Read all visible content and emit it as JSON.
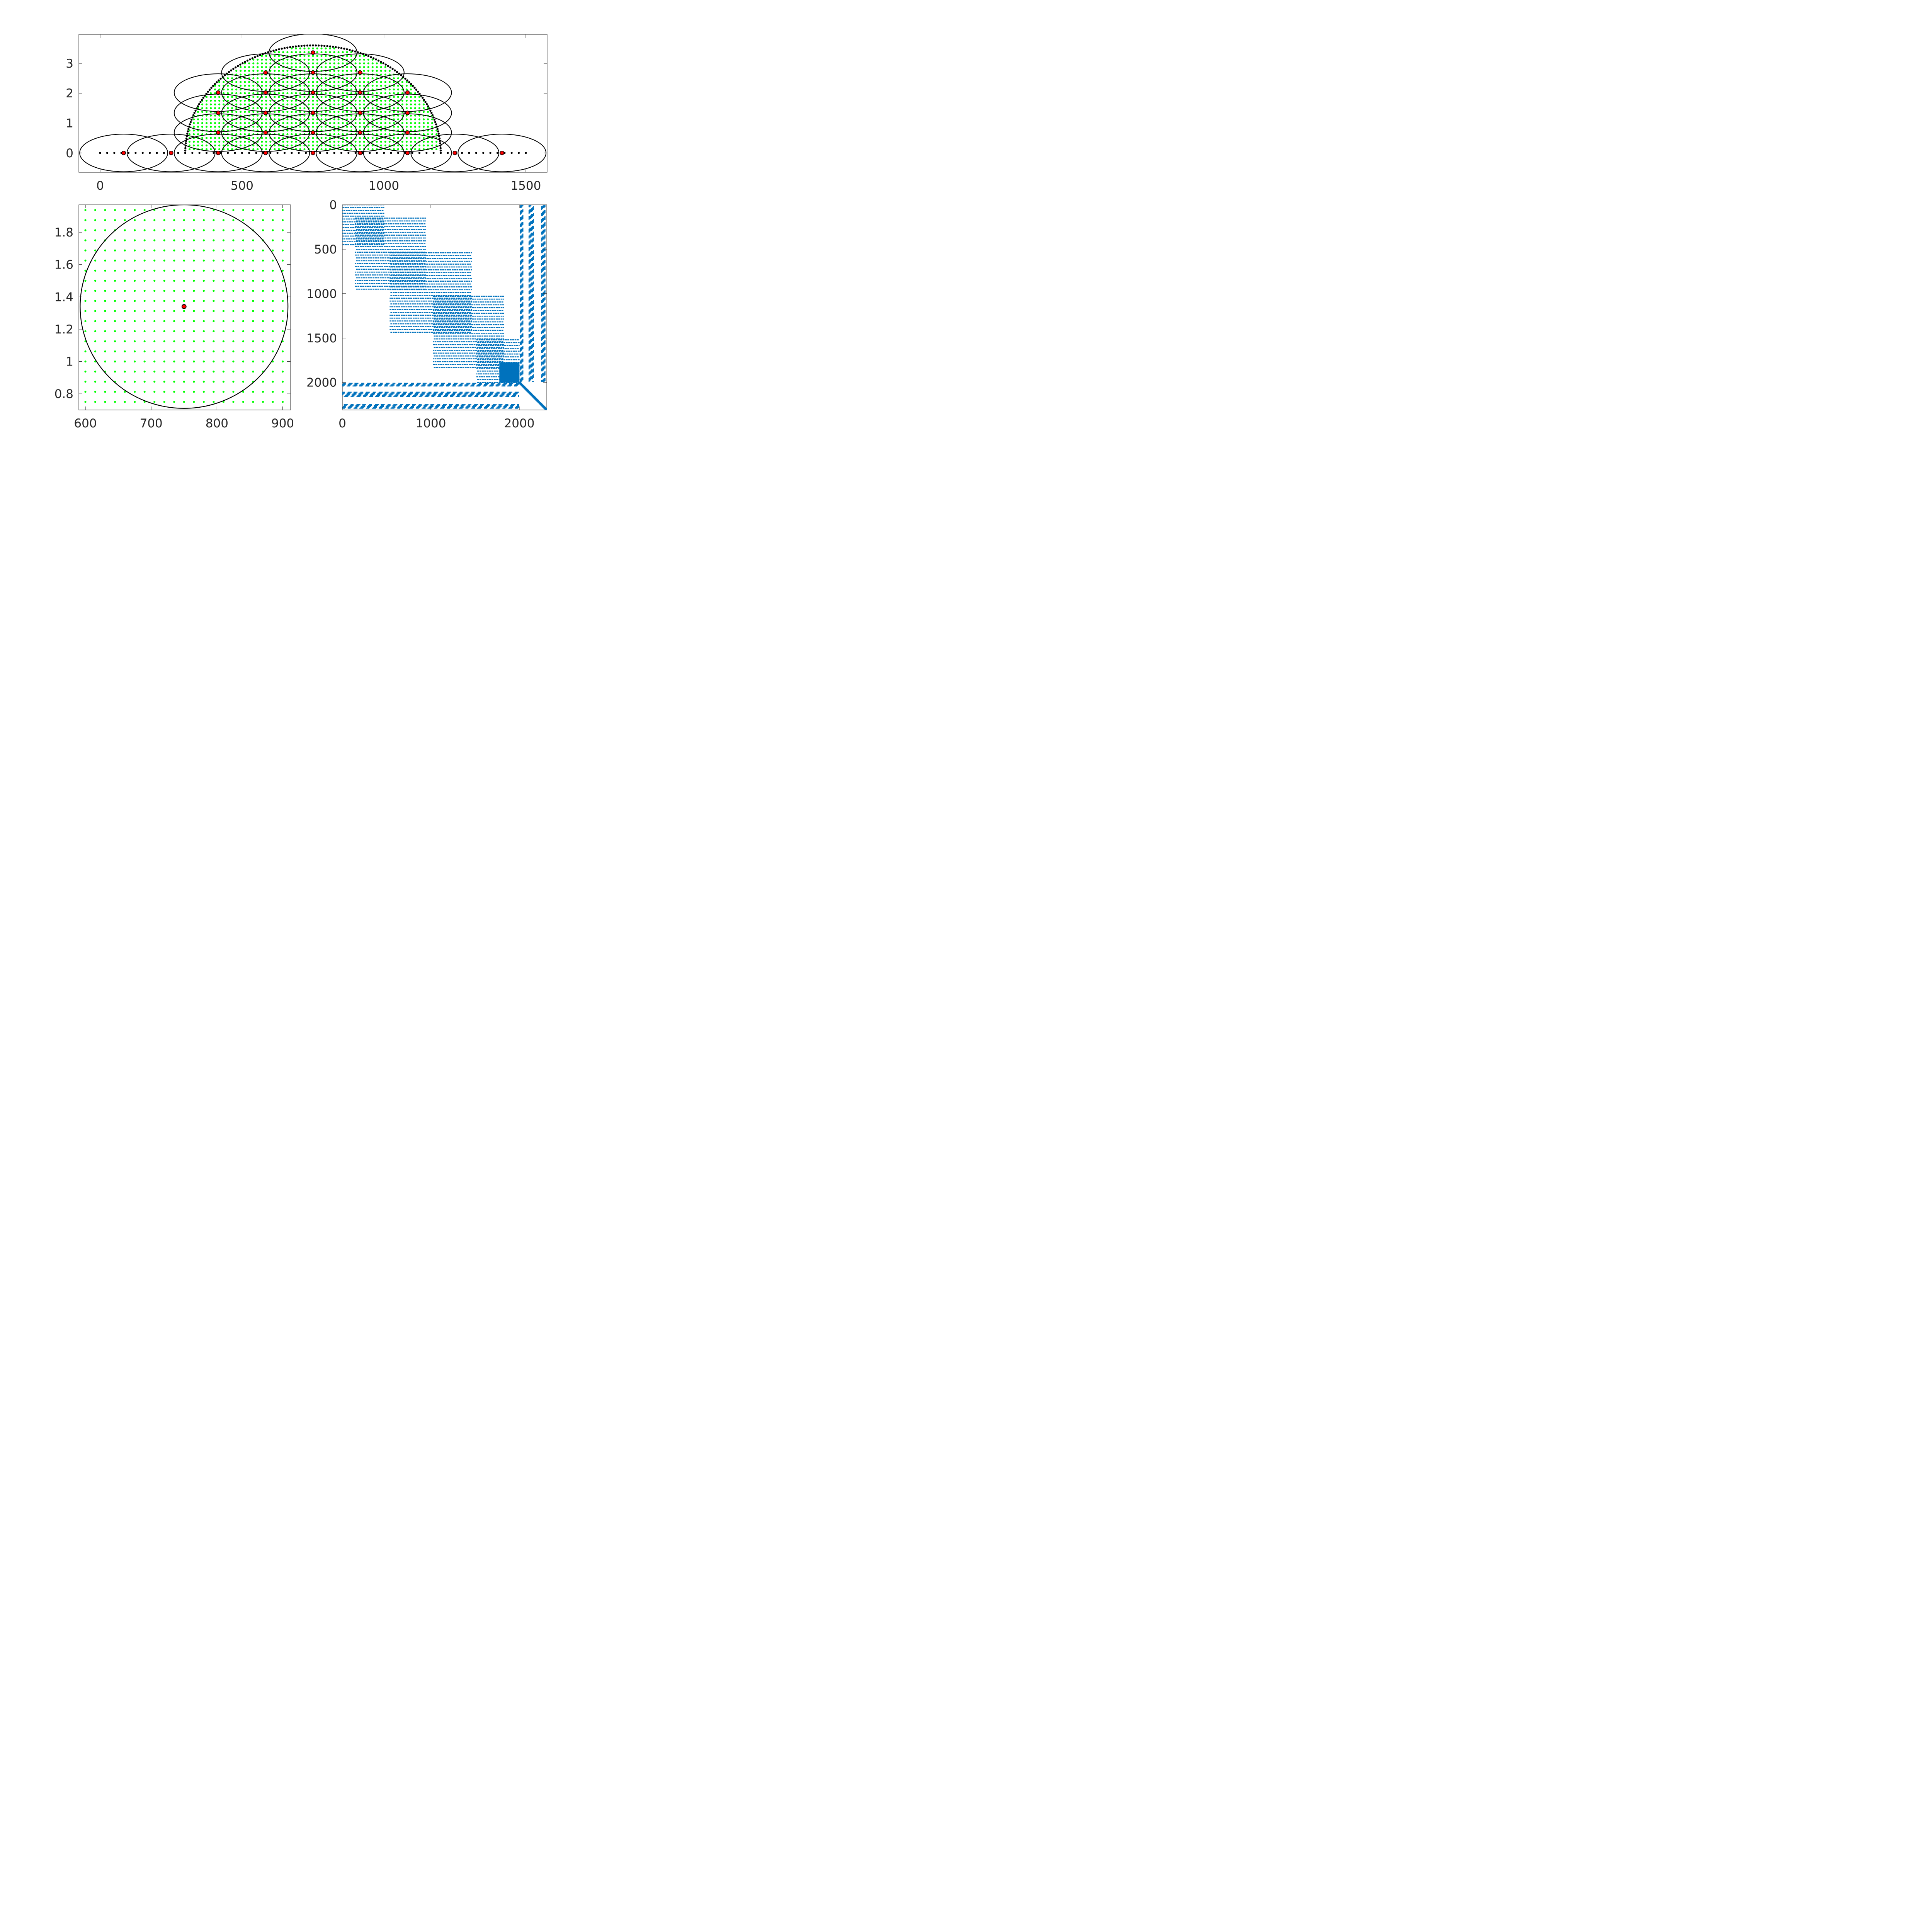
{
  "colors": {
    "interior_points": "#00ff00",
    "centers": "#ff0000",
    "outline": "#000000",
    "sparsity": "#0072bd",
    "axes": "#262626"
  },
  "chart_data": [
    {
      "type": "scatter",
      "title": "",
      "xlabel": "",
      "ylabel": "",
      "xlim": [
        -75,
        1575
      ],
      "ylim": [
        -0.65,
        3.97
      ],
      "xticks": [
        "0",
        "500",
        "1000",
        "1500"
      ],
      "yticks": [
        "0",
        "1",
        "2",
        "3"
      ],
      "xtick_values": [
        0,
        500,
        1000,
        1500
      ],
      "ytick_values": [
        0,
        1,
        2,
        3
      ],
      "grid": false,
      "ellipse_semi_axes": [
        155,
        0.63
      ],
      "series": [
        {
          "role": "boundary",
          "color": "#000000",
          "segments": [
            {
              "kind": "line",
              "x_range": [
                0,
                1500
              ],
              "y": 0,
              "n_points": 61
            },
            {
              "kind": "semi-ellipse",
              "center_x": 750,
              "a": 450,
              "b": 3.6,
              "n_points": 140
            }
          ]
        },
        {
          "role": "interior",
          "color": "#00ff00",
          "x_spacing": 15,
          "y_spacing": 0.125
        },
        {
          "role": "centers",
          "color": "#ff0000",
          "points": [
            [
              83,
              0
            ],
            [
              250,
              0
            ],
            [
              416,
              0
            ],
            [
              583,
              0
            ],
            [
              750,
              0
            ],
            [
              916,
              0
            ],
            [
              1083,
              0
            ],
            [
              1250,
              0
            ],
            [
              1416,
              0
            ],
            [
              416,
              0.68
            ],
            [
              583,
              0.68
            ],
            [
              750,
              0.68
            ],
            [
              916,
              0.68
            ],
            [
              1083,
              0.68
            ],
            [
              416,
              1.34
            ],
            [
              583,
              1.34
            ],
            [
              750,
              1.34
            ],
            [
              916,
              1.34
            ],
            [
              1083,
              1.34
            ],
            [
              416,
              2.02
            ],
            [
              583,
              2.02
            ],
            [
              750,
              2.02
            ],
            [
              916,
              2.02
            ],
            [
              1083,
              2.02
            ],
            [
              583,
              2.69
            ],
            [
              750,
              2.69
            ],
            [
              916,
              2.69
            ],
            [
              750,
              3.36
            ]
          ]
        }
      ]
    },
    {
      "type": "scatter",
      "title": "",
      "xlabel": "",
      "ylabel": "",
      "xlim": [
        590,
        912
      ],
      "ylim": [
        0.7,
        1.97
      ],
      "xticks": [
        "600",
        "700",
        "800",
        "900"
      ],
      "yticks": [
        "0.8",
        "1",
        "1.2",
        "1.4",
        "1.6",
        "1.8"
      ],
      "xtick_values": [
        600,
        700,
        800,
        900
      ],
      "ytick_values": [
        0.8,
        1.0,
        1.2,
        1.4,
        1.6,
        1.8
      ],
      "grid": false,
      "series": [
        {
          "role": "interior",
          "color": "#00ff00",
          "x_start": 600,
          "x_end": 900,
          "x_step": 15,
          "y_start": 0.75,
          "y_end": 1.94,
          "y_step": 0.0625
        },
        {
          "role": "patch-boundary",
          "color": "#000000",
          "center": [
            750,
            1.34
          ],
          "semi_axes": [
            158,
            0.63
          ]
        },
        {
          "role": "center",
          "color": "#ff0000",
          "points": [
            [
              750,
              1.34
            ]
          ]
        }
      ]
    },
    {
      "type": "heatmap",
      "subtype": "sparsity-pattern",
      "title": "",
      "xlabel": "",
      "ylabel": "",
      "xlim": [
        0,
        2310
      ],
      "ylim": [
        0,
        2310
      ],
      "y_reversed": true,
      "xticks": [
        "0",
        "1000",
        "2000"
      ],
      "yticks": [
        "0",
        "500",
        "1000",
        "1500",
        "2000"
      ],
      "xtick_values": [
        0,
        1000,
        2000
      ],
      "ytick_values": [
        0,
        500,
        1000,
        1500,
        2000
      ],
      "color": "#0072bd",
      "blocks": [
        {
          "rows": [
            0,
            470
          ],
          "cols": [
            0,
            470
          ]
        },
        {
          "rows": [
            150,
            950
          ],
          "cols": [
            150,
            950
          ]
        },
        {
          "rows": [
            540,
            1460
          ],
          "cols": [
            540,
            1460
          ]
        },
        {
          "rows": [
            1030,
            1830
          ],
          "cols": [
            1030,
            1830
          ]
        },
        {
          "rows": [
            1520,
            2000
          ],
          "cols": [
            1520,
            2000
          ]
        }
      ]
    }
  ]
}
